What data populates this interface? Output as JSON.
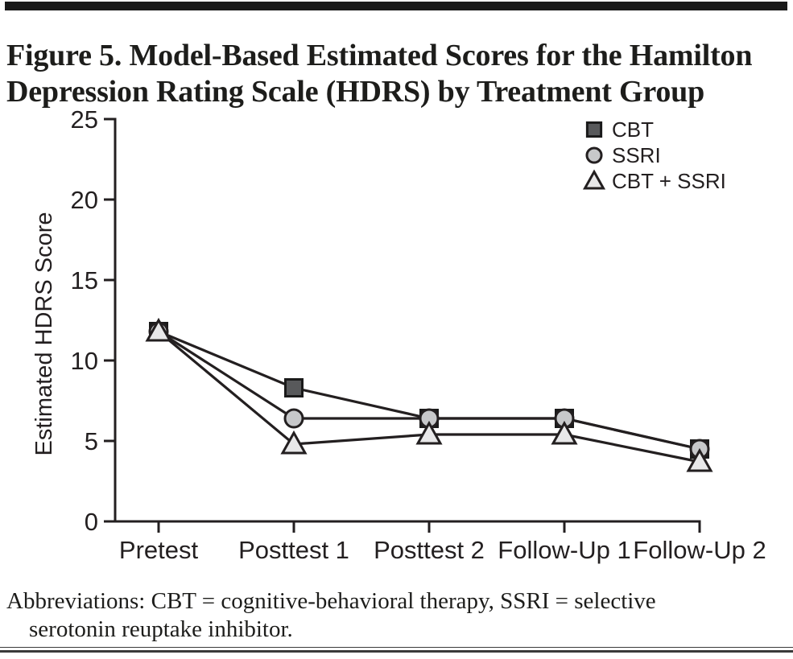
{
  "figure": {
    "title_line1": "Figure 5. Model-Based Estimated Scores for the Hamilton",
    "title_line2": "Depression Rating Scale (HDRS) by Treatment Group",
    "footnote_line1": "Abbreviations: CBT = cognitive-behavioral therapy, SSRI = selective",
    "footnote_line2": "serotonin reuptake inhibitor.",
    "top_bar_color": "#1a1a1a",
    "text_color": "#1d1d1b"
  },
  "chart_data": {
    "type": "line",
    "title": "",
    "xlabel": "",
    "ylabel": "Estimated HDRS Score",
    "categories": [
      "Pretest",
      "Posttest 1",
      "Posttest 2",
      "Follow-Up 1",
      "Follow-Up 2"
    ],
    "series": [
      {
        "name": "CBT",
        "marker": "square",
        "marker_fill": "#58595b",
        "values": [
          11.8,
          8.3,
          6.4,
          6.4,
          4.5
        ]
      },
      {
        "name": "SSRI",
        "marker": "circle",
        "marker_fill": "#c7c8ca",
        "values": [
          11.8,
          6.4,
          6.4,
          6.4,
          4.5
        ]
      },
      {
        "name": "CBT + SSRI",
        "marker": "triangle",
        "marker_fill": "#e8e8e9",
        "values": [
          11.8,
          4.8,
          5.4,
          5.4,
          3.7
        ]
      }
    ],
    "ylim": [
      0,
      25
    ],
    "yticks": [
      0,
      5,
      10,
      15,
      20,
      25
    ],
    "grid": false,
    "legend_position": "top-right",
    "line_color": "#231f20",
    "axis_color": "#231f20"
  }
}
